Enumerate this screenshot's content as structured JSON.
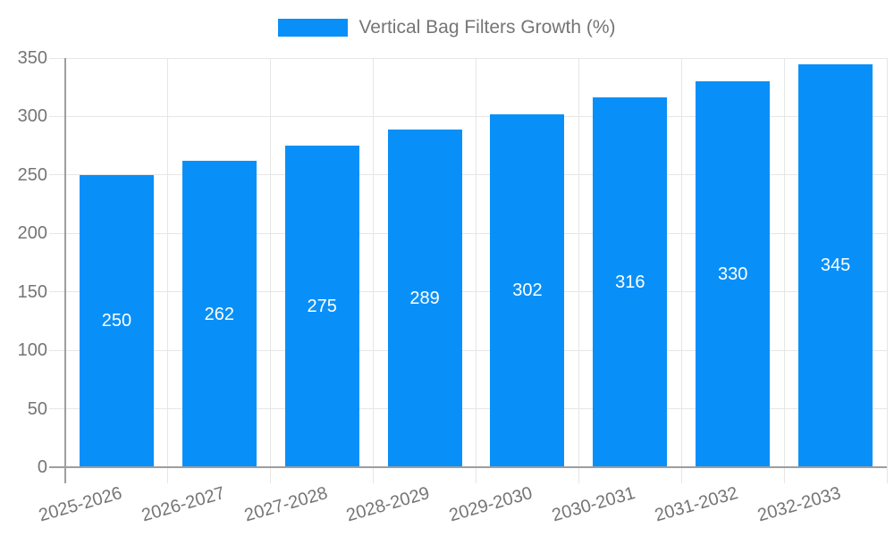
{
  "chart_data": {
    "type": "bar",
    "title": "Vertical Bag Filters Growth (%)",
    "categories": [
      "2025-2026",
      "2026-2027",
      "2027-2028",
      "2028-2029",
      "2029-2030",
      "2030-2031",
      "2031-2032",
      "2032-2033"
    ],
    "values": [
      250,
      262,
      275,
      289,
      302,
      316,
      330,
      345
    ],
    "value_labels": [
      "250",
      "262",
      "275",
      "289",
      "302",
      "316",
      "330",
      "345"
    ],
    "yticks": [
      0,
      50,
      100,
      150,
      200,
      250,
      300,
      350
    ],
    "ylim": [
      0,
      350
    ],
    "xlabel": "",
    "ylabel": "",
    "grid": true,
    "legend_position": "top",
    "bar_color": "#0990f8",
    "value_label_color": "#ffffff",
    "gridline_color": "#e6e6e6",
    "axis_color": "#9e9e9e",
    "text_color": "#757575",
    "background_color": "#ffffff"
  }
}
